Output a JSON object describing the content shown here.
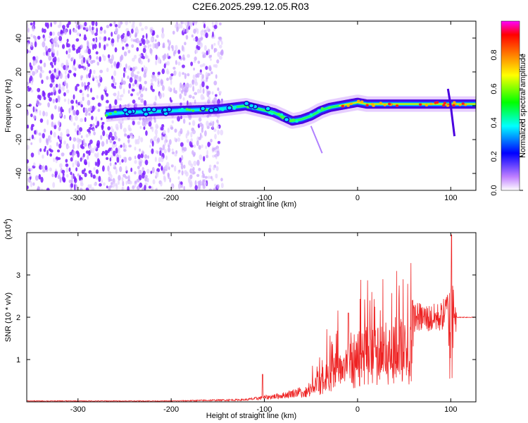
{
  "title": "C2E6.2025.299.12.05.R03",
  "chart_data": [
    {
      "type": "heatmap",
      "xlabel": "Height of straight line (km)",
      "ylabel": "Frequency (Hz)",
      "xlim": [
        -355,
        127
      ],
      "ylim": [
        -50,
        50
      ],
      "x_ticks": [
        -300,
        -200,
        -100,
        0,
        100
      ],
      "y_ticks": [
        -40,
        -20,
        0,
        20,
        40
      ],
      "colorbar": {
        "label": "Normalized spectral amplitude",
        "range": [
          0,
          1
        ],
        "ticks": [
          "0.0",
          "0.2",
          "0.4",
          "0.6",
          "0.8"
        ],
        "colors": [
          "#ffffff",
          "#c080ff",
          "#0000ff",
          "#00ffff",
          "#00ff00",
          "#ffff00",
          "#ff8000",
          "#ff0000",
          "#ff00ff"
        ]
      },
      "ridge": {
        "x": [
          -270,
          -250,
          -200,
          -150,
          -120,
          -90,
          -70,
          -60,
          -50,
          -40,
          -30,
          -20,
          -10,
          0,
          10,
          30,
          50,
          70,
          95,
          100,
          127
        ],
        "y": [
          -5,
          -4,
          -3,
          -2,
          0,
          -4,
          -9,
          -8,
          -6,
          -3,
          -1,
          0,
          1,
          2,
          1,
          1,
          1,
          1,
          1,
          1,
          1
        ]
      }
    },
    {
      "type": "line",
      "xlabel": "Height of straight line (km)",
      "ylabel": "SNR (10 * v/v)",
      "y_multiplier": "(x10",
      "y_multiplier_exp": "4",
      "multiplier_close": ")",
      "xlim": [
        -355,
        127
      ],
      "ylim": [
        0,
        4
      ],
      "x_ticks": [
        -300,
        -200,
        -100,
        0,
        100
      ],
      "y_ticks": [
        1,
        2,
        3
      ],
      "color": "#ee2222",
      "envelope": {
        "x": [
          -355,
          -200,
          -120,
          -80,
          -60,
          -50,
          -40,
          -30,
          -20,
          -10,
          0,
          20,
          40,
          60,
          80,
          90,
          95,
          98,
          100,
          102,
          105,
          127
        ],
        "y": [
          0.02,
          0.02,
          0.05,
          0.15,
          0.25,
          0.5,
          0.8,
          1.1,
          1.35,
          1.5,
          1.7,
          1.85,
          2.0,
          2.05,
          2.0,
          2.05,
          2.2,
          2.4,
          2.8,
          2.5,
          2.0,
          2.0
        ]
      },
      "spikes": [
        {
          "x": -102,
          "y": 0.65
        },
        {
          "x": -10,
          "y": 2.1
        },
        {
          "x": 59,
          "y": 2.4
        },
        {
          "x": 101,
          "y": 3.95
        }
      ]
    }
  ]
}
